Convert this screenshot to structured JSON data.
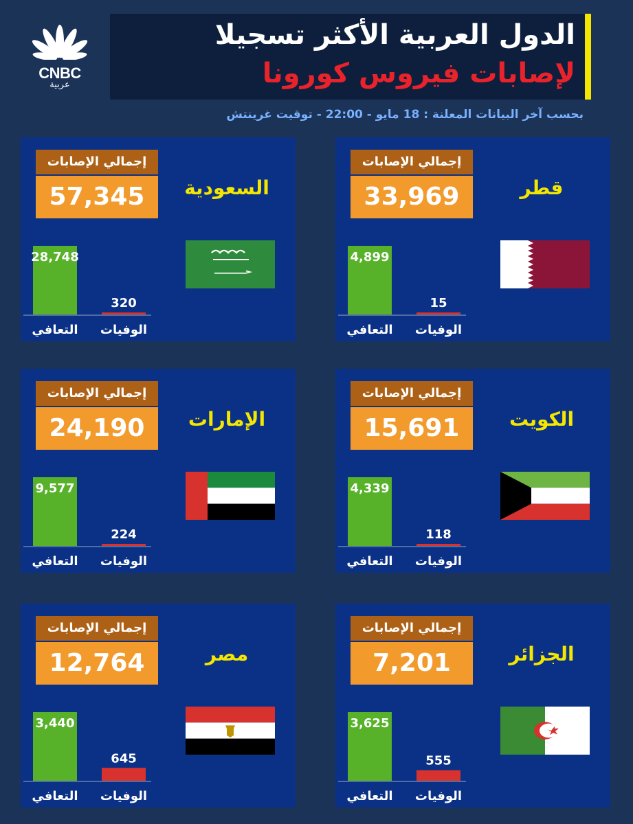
{
  "brand": {
    "name": "CNBC",
    "arabic": "عربية"
  },
  "title": {
    "line1": "الدول العربية الأكثر تسجيلا",
    "line2": "لإصابات فيروس كورونا"
  },
  "subtitle": "بحسب آخر البيانات المعلنة : 18 مايو - 22:00 - توقيت غرينتش",
  "colors": {
    "recovered": "#57b22a",
    "deaths": "#d8322f",
    "country": "#f3e600",
    "cases_box": "#f29a2c",
    "cases_label_box": "#ad6116",
    "panel": "#0b3186",
    "title_accent": "#e8232b"
  },
  "labels": {
    "total_cases": "إجمالي الإصابات",
    "deaths": "الوفيات",
    "recovered": "التعافي"
  },
  "chart_data": [
    {
      "type": "bar",
      "title": "قطر",
      "total_cases": "33,969",
      "categories": [
        "التعافي",
        "الوفيات"
      ],
      "values": [
        4899,
        15
      ],
      "value_labels": [
        "4,899",
        "15"
      ],
      "ylim": [
        0,
        4899
      ],
      "flag": "qatar-flag"
    },
    {
      "type": "bar",
      "title": "السعودية",
      "total_cases": "57,345",
      "categories": [
        "التعافي",
        "الوفيات"
      ],
      "values": [
        28748,
        320
      ],
      "value_labels": [
        "28,748",
        "320"
      ],
      "ylim": [
        0,
        28748
      ],
      "flag": "saudi-flag"
    },
    {
      "type": "bar",
      "title": "الكويت",
      "total_cases": "15,691",
      "categories": [
        "التعافي",
        "الوفيات"
      ],
      "values": [
        4339,
        118
      ],
      "value_labels": [
        "4,339",
        "118"
      ],
      "ylim": [
        0,
        4339
      ],
      "flag": "kuwait-flag"
    },
    {
      "type": "bar",
      "title": "الإمارات",
      "total_cases": "24,190",
      "categories": [
        "التعافي",
        "الوفيات"
      ],
      "values": [
        9577,
        224
      ],
      "value_labels": [
        "9,577",
        "224"
      ],
      "ylim": [
        0,
        9577
      ],
      "flag": "uae-flag"
    },
    {
      "type": "bar",
      "title": "الجزائر",
      "total_cases": "7,201",
      "categories": [
        "التعافي",
        "الوفيات"
      ],
      "values": [
        3625,
        555
      ],
      "value_labels": [
        "3,625",
        "555"
      ],
      "ylim": [
        0,
        3625
      ],
      "flag": "algeria-flag"
    },
    {
      "type": "bar",
      "title": "مصر",
      "total_cases": "12,764",
      "categories": [
        "التعافي",
        "الوفيات"
      ],
      "values": [
        3440,
        645
      ],
      "value_labels": [
        "3,440",
        "645"
      ],
      "ylim": [
        0,
        3440
      ],
      "flag": "egypt-flag"
    }
  ]
}
